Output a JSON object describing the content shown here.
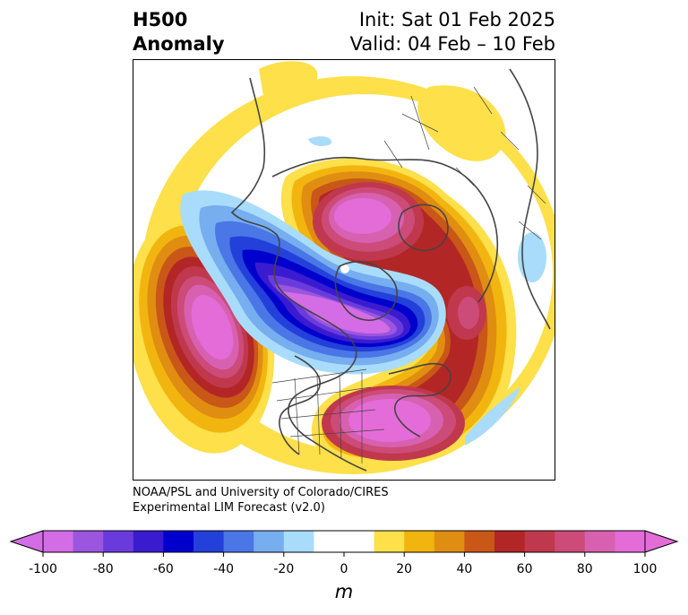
{
  "title": {
    "left_line1": "H500",
    "left_line2": "Anomaly",
    "right_line1": "Init: Sat 01 Feb 2025",
    "right_line2": "Valid: 04 Feb – 10 Feb"
  },
  "credit": {
    "line1": "NOAA/PSL and University of Colorado/CIRES",
    "line2": "Experimental LIM Forecast (v2.0)"
  },
  "colorbar": {
    "unit": "m",
    "ticks": [
      "-100",
      "-80",
      "-60",
      "-40",
      "-20",
      "0",
      "20",
      "40",
      "60",
      "80",
      "100"
    ],
    "colors": [
      "#d46ce6",
      "#9b55de",
      "#6a3bdc",
      "#3a1bd0",
      "#0000cd",
      "#2340db",
      "#4a76e6",
      "#76aef0",
      "#a9dcfb",
      "#ffffff",
      "#ffffff",
      "#fde04a",
      "#f2b50f",
      "#e08e12",
      "#c95717",
      "#b32626",
      "#c0384d",
      "#cc4b78",
      "#d761b0",
      "#e46cd8"
    ]
  },
  "anomalies": [
    {
      "name": "pacific-ridge",
      "sign": "positive",
      "peak": 100
    },
    {
      "name": "arctic-siberia-ridge",
      "sign": "positive",
      "peak": 90
    },
    {
      "name": "eastern-us-ridge",
      "sign": "positive",
      "peak": 100
    },
    {
      "name": "europe-ridge",
      "sign": "positive",
      "peak": 80
    },
    {
      "name": "canada-trough",
      "sign": "negative",
      "peak": -100
    }
  ]
}
